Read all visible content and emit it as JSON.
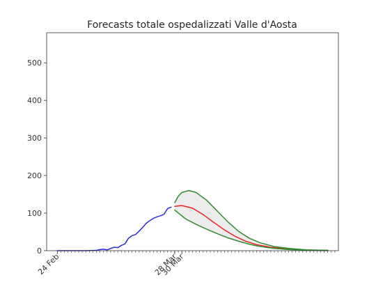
{
  "chart_data": {
    "type": "line",
    "title": "Forecasts totale ospedalizzati Valle d'Aosta",
    "xlabel": "",
    "ylabel": "",
    "x_type": "date",
    "xlim": [
      "2020-02-21",
      "2020-05-13"
    ],
    "ylim": [
      0,
      580
    ],
    "yticks": [
      0,
      100,
      200,
      300,
      400,
      500
    ],
    "xticks": [
      {
        "date": "2020-02-24",
        "label": "24 Feb"
      },
      {
        "date": "2020-03-28",
        "label": "28 Mar"
      },
      {
        "date": "2020-03-30",
        "label": "30 Mar"
      }
    ],
    "minor_xticks": "daily",
    "grid": false,
    "legend": "none",
    "series": [
      {
        "role": "observed",
        "color": "#2a2ae0",
        "points": [
          [
            "2020-02-24",
            0
          ],
          [
            "2020-02-28",
            0
          ],
          [
            "2020-03-03",
            0
          ],
          [
            "2020-03-06",
            1
          ],
          [
            "2020-03-07",
            3
          ],
          [
            "2020-03-08",
            4
          ],
          [
            "2020-03-09",
            2
          ],
          [
            "2020-03-10",
            6
          ],
          [
            "2020-03-11",
            9
          ],
          [
            "2020-03-12",
            8
          ],
          [
            "2020-03-13",
            14
          ],
          [
            "2020-03-14",
            18
          ],
          [
            "2020-03-15",
            33
          ],
          [
            "2020-03-16",
            40
          ],
          [
            "2020-03-17",
            43
          ],
          [
            "2020-03-18",
            52
          ],
          [
            "2020-03-19",
            62
          ],
          [
            "2020-03-20",
            73
          ],
          [
            "2020-03-21",
            80
          ],
          [
            "2020-03-22",
            86
          ],
          [
            "2020-03-23",
            90
          ],
          [
            "2020-03-24",
            93
          ],
          [
            "2020-03-25",
            97
          ],
          [
            "2020-03-26",
            112
          ],
          [
            "2020-03-27",
            116
          ]
        ]
      },
      {
        "role": "forecast",
        "color": "#ee2222",
        "points": [
          [
            "2020-03-28",
            118
          ],
          [
            "2020-03-30",
            120
          ],
          [
            "2020-04-02",
            113
          ],
          [
            "2020-04-05",
            96
          ],
          [
            "2020-04-08",
            75
          ],
          [
            "2020-04-11",
            55
          ],
          [
            "2020-04-14",
            38
          ],
          [
            "2020-04-17",
            25
          ],
          [
            "2020-04-20",
            16
          ],
          [
            "2020-04-24",
            9
          ],
          [
            "2020-04-28",
            5
          ],
          [
            "2020-05-03",
            2
          ],
          [
            "2020-05-08",
            1
          ],
          [
            "2020-05-10",
            1
          ]
        ]
      },
      {
        "role": "upper-bound",
        "color": "#2e8b2e",
        "points": [
          [
            "2020-03-28",
            128
          ],
          [
            "2020-03-29",
            145
          ],
          [
            "2020-03-30",
            155
          ],
          [
            "2020-04-01",
            160
          ],
          [
            "2020-04-03",
            155
          ],
          [
            "2020-04-06",
            134
          ],
          [
            "2020-04-09",
            105
          ],
          [
            "2020-04-12",
            76
          ],
          [
            "2020-04-15",
            51
          ],
          [
            "2020-04-18",
            33
          ],
          [
            "2020-04-21",
            21
          ],
          [
            "2020-04-25",
            11
          ],
          [
            "2020-04-29",
            6
          ],
          [
            "2020-05-04",
            2
          ],
          [
            "2020-05-10",
            1
          ]
        ]
      },
      {
        "role": "lower-bound",
        "color": "#2e8b2e",
        "points": [
          [
            "2020-03-28",
            108
          ],
          [
            "2020-03-31",
            85
          ],
          [
            "2020-04-03",
            70
          ],
          [
            "2020-04-06",
            57
          ],
          [
            "2020-04-09",
            45
          ],
          [
            "2020-04-12",
            34
          ],
          [
            "2020-04-15",
            25
          ],
          [
            "2020-04-18",
            17
          ],
          [
            "2020-04-21",
            11
          ],
          [
            "2020-04-25",
            6
          ],
          [
            "2020-04-29",
            3
          ],
          [
            "2020-05-04",
            1
          ],
          [
            "2020-05-10",
            0
          ]
        ]
      }
    ],
    "band": {
      "between": [
        "upper-bound",
        "lower-bound"
      ],
      "color": "#ececec"
    }
  }
}
